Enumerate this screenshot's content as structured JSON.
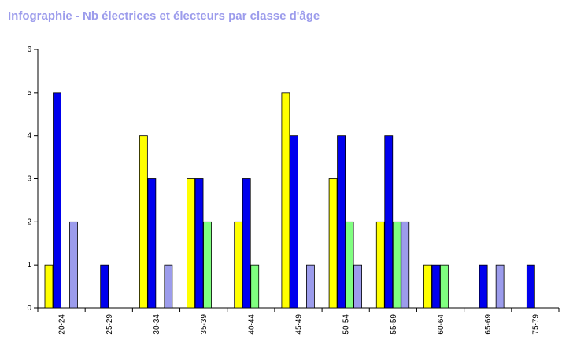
{
  "title": "Infographie - Nb électrices et électeurs par classe d'âge",
  "chart_data": {
    "type": "bar",
    "categories": [
      "20-24",
      "25-29",
      "30-34",
      "35-39",
      "40-44",
      "45-49",
      "50-54",
      "55-59",
      "60-64",
      "65-69",
      "75-79"
    ],
    "series": [
      {
        "color": "#ffff00",
        "values": [
          1,
          0,
          4,
          3,
          2,
          5,
          3,
          2,
          1,
          0,
          0
        ]
      },
      {
        "color": "#0000ee",
        "values": [
          5,
          1,
          3,
          3,
          3,
          4,
          4,
          4,
          1,
          1,
          1
        ]
      },
      {
        "color": "#80ff80",
        "values": [
          0,
          0,
          0,
          2,
          1,
          0,
          2,
          2,
          1,
          0,
          0
        ]
      },
      {
        "color": "#9c9cec",
        "values": [
          2,
          0,
          1,
          0,
          0,
          1,
          1,
          2,
          0,
          1,
          0
        ]
      }
    ],
    "y_ticks": [
      "0",
      "1",
      "2",
      "3",
      "4",
      "5",
      "6"
    ],
    "ylim": [
      0,
      6
    ],
    "grid": false,
    "legend": "none"
  }
}
